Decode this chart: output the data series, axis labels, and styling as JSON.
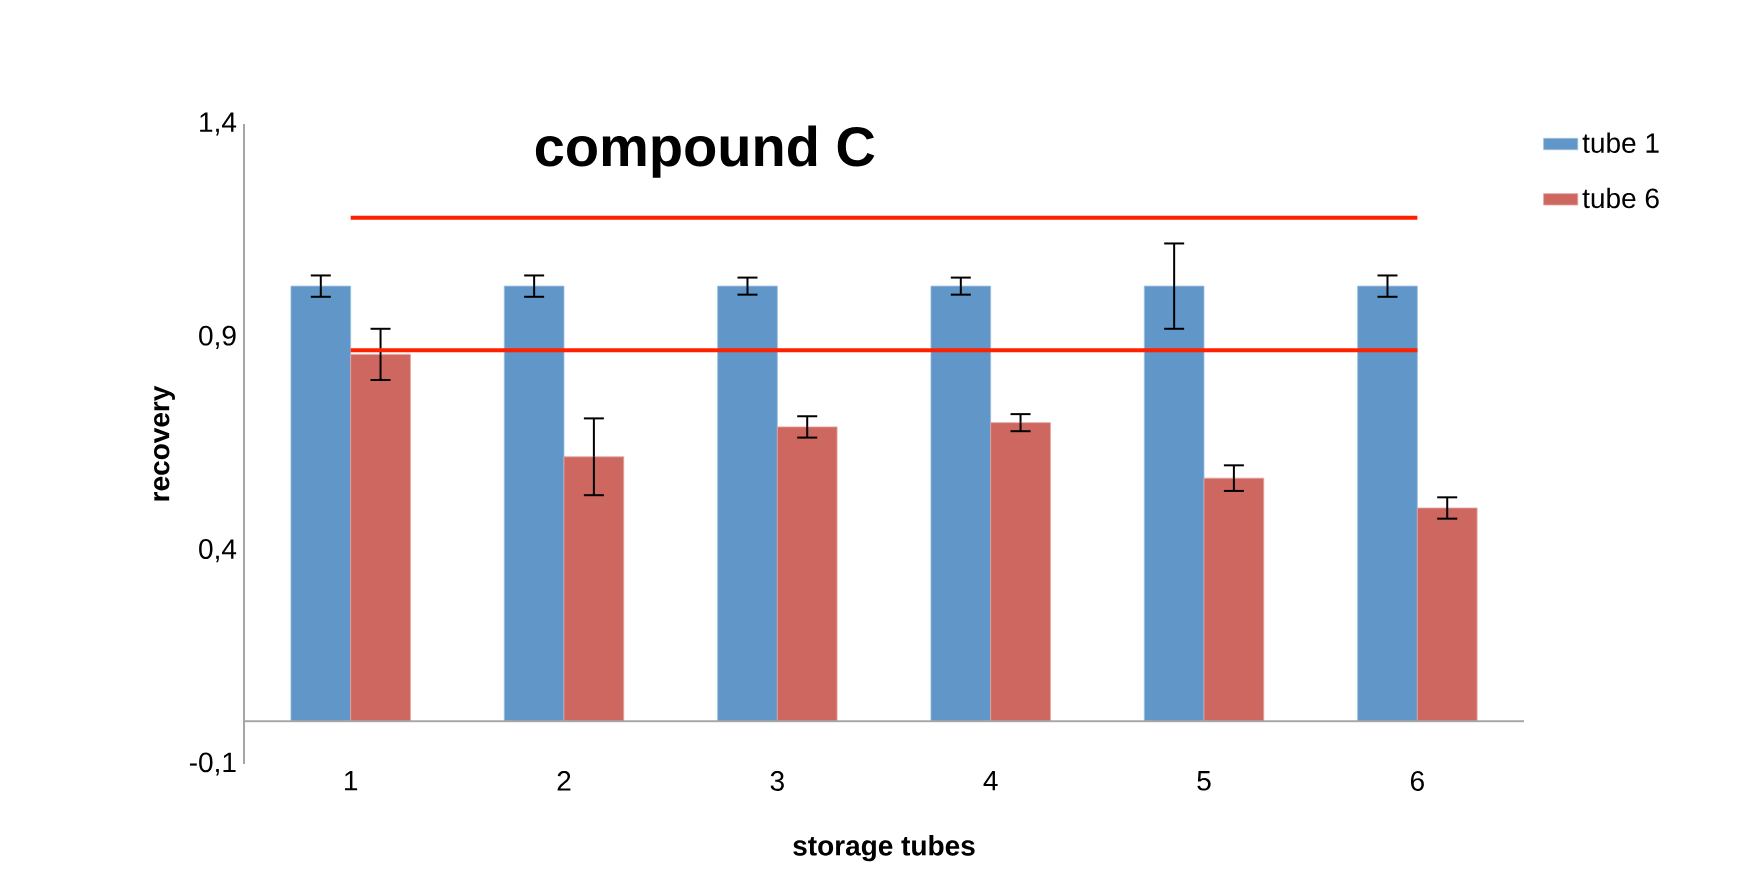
{
  "chart_data": {
    "type": "bar",
    "title": "compound C",
    "xlabel": "storage tubes",
    "ylabel": "recovery",
    "categories": [
      "1",
      "2",
      "3",
      "4",
      "5",
      "6"
    ],
    "series": [
      {
        "name": "tube 1",
        "color": "#6096c8",
        "values": [
          1.02,
          1.02,
          1.02,
          1.02,
          1.02,
          1.02
        ],
        "errors": [
          0.025,
          0.025,
          0.02,
          0.02,
          0.1,
          0.025
        ]
      },
      {
        "name": "tube 6",
        "color": "#cd6760",
        "values": [
          0.86,
          0.62,
          0.69,
          0.7,
          0.57,
          0.5
        ],
        "errors": [
          0.06,
          0.09,
          0.025,
          0.02,
          0.03,
          0.025
        ]
      },
      {
        "type": "line",
        "color": "#ff2000",
        "values": [
          1.18,
          1.18,
          1.18,
          1.18,
          1.18,
          1.18
        ]
      },
      {
        "type": "line",
        "color": "#ff2000",
        "values": [
          0.87,
          0.87,
          0.87,
          0.87,
          0.87,
          0.87
        ]
      }
    ],
    "ylim": [
      -0.1,
      1.4
    ],
    "yticks": [
      {
        "value": -0.1,
        "label": "-0,1"
      },
      {
        "value": 0.4,
        "label": "0,4"
      },
      {
        "value": 0.9,
        "label": "0,9"
      },
      {
        "value": 1.4,
        "label": "1,4"
      }
    ],
    "grid": false,
    "legend": "top right"
  }
}
